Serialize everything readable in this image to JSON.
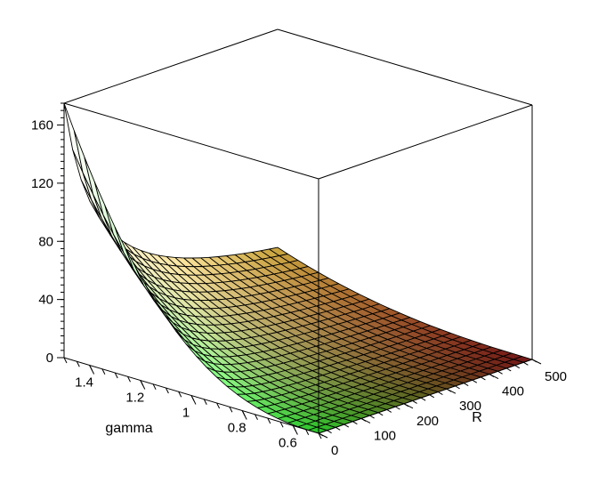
{
  "chart_data": {
    "type": "surface3d",
    "title": "",
    "xlabel": "R",
    "ylabel": "gamma",
    "zlabel": "",
    "xlim": [
      0,
      500
    ],
    "ylim": [
      0.5,
      1.5
    ],
    "zlim": [
      0,
      175
    ],
    "x_ticks": [
      "0",
      "100",
      "200",
      "300",
      "400",
      "500"
    ],
    "y_ticks": [
      "1.4",
      "1.2",
      "1",
      "0.8",
      "0.6"
    ],
    "z_ticks": [
      "0",
      "40",
      "80",
      "120",
      "160"
    ],
    "grid_resolution": [
      25,
      25
    ],
    "surface_peak": {
      "R": 0,
      "gamma": 1.5,
      "z": 175
    },
    "surface_corners": [
      {
        "R": 0,
        "gamma": 1.5,
        "z": 175
      },
      {
        "R": 500,
        "gamma": 1.5,
        "z": 2
      },
      {
        "R": 0,
        "gamma": 0.5,
        "z": 0
      },
      {
        "R": 500,
        "gamma": 0.5,
        "z": 0
      }
    ],
    "colors": {
      "high_gamma_low_R": "#ffffff",
      "high_gamma_high_R": "#ffd24d",
      "low_gamma_low_R": "#33ff33",
      "low_gamma_high_R": "#ff3333",
      "mesh": "#000000"
    }
  }
}
